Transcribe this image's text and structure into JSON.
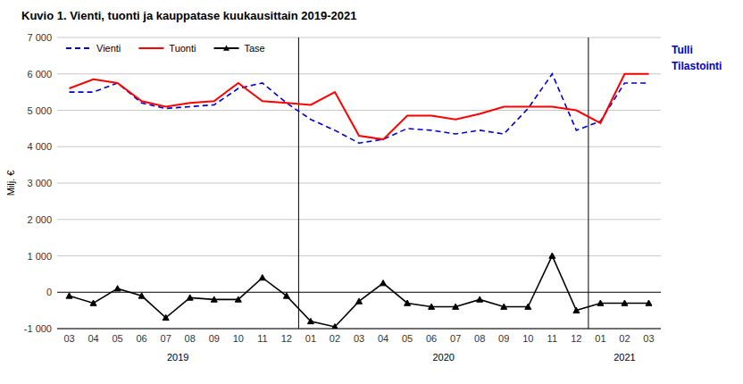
{
  "chart_data": {
    "type": "line",
    "title": "Kuvio  1. Vienti, tuonti ja kauppatase kuukausittain 2019-2021",
    "ylabel": "Milj. €",
    "categories": [
      "03",
      "04",
      "05",
      "06",
      "07",
      "08",
      "09",
      "10",
      "11",
      "12",
      "01",
      "02",
      "03",
      "04",
      "05",
      "06",
      "07",
      "08",
      "09",
      "10",
      "11",
      "12",
      "01",
      "02",
      "03"
    ],
    "series": [
      {
        "name": "Vienti",
        "color": "#0000CC",
        "line_style": "dashed",
        "values": [
          5500,
          5500,
          5750,
          5200,
          5050,
          5100,
          5150,
          5600,
          5750,
          5200,
          4750,
          4450,
          4100,
          4200,
          4500,
          4450,
          4350,
          4450,
          4350,
          5050,
          6000,
          4450,
          4700,
          5750,
          5750
        ]
      },
      {
        "name": "Tuonti",
        "color": "#FF0000",
        "line_style": "solid",
        "values": [
          5600,
          5850,
          5750,
          5250,
          5100,
          5200,
          5250,
          5750,
          5250,
          5200,
          5150,
          5500,
          4300,
          4200,
          4850,
          4850,
          4750,
          4900,
          5100,
          5100,
          5100,
          5000,
          4650,
          6000,
          6000
        ]
      },
      {
        "name": "Tase",
        "color": "#000000",
        "line_style": "solid",
        "marker": "triangle",
        "values": [
          -100,
          -300,
          100,
          -100,
          -700,
          -150,
          -200,
          -200,
          400,
          -100,
          -800,
          -950,
          -250,
          250,
          -300,
          -400,
          -400,
          -200,
          -400,
          -400,
          1000,
          -500,
          -300,
          -300,
          -300
        ]
      }
    ],
    "ylim": [
      -1000,
      7000
    ],
    "yticks": [
      {
        "value": -1000,
        "label": "-1 000"
      },
      0,
      {
        "value": 1000,
        "label": "1 000"
      },
      {
        "value": 2000,
        "label": "2 000"
      },
      {
        "value": 3000,
        "label": "3 000"
      },
      {
        "value": 4000,
        "label": "4 000"
      },
      {
        "value": 5000,
        "label": "5 000"
      },
      {
        "value": 6000,
        "label": "6 000"
      },
      {
        "value": 7000,
        "label": "7 000"
      }
    ],
    "grid": true,
    "legend": "upper left",
    "annotations": [
      {
        "text": "Tulli",
        "color": "#0000CC"
      },
      {
        "text": "Tilastointi",
        "color": "#0000CC"
      },
      {
        "text": "2019"
      },
      {
        "text": "2020"
      },
      {
        "text": "2021"
      }
    ]
  }
}
